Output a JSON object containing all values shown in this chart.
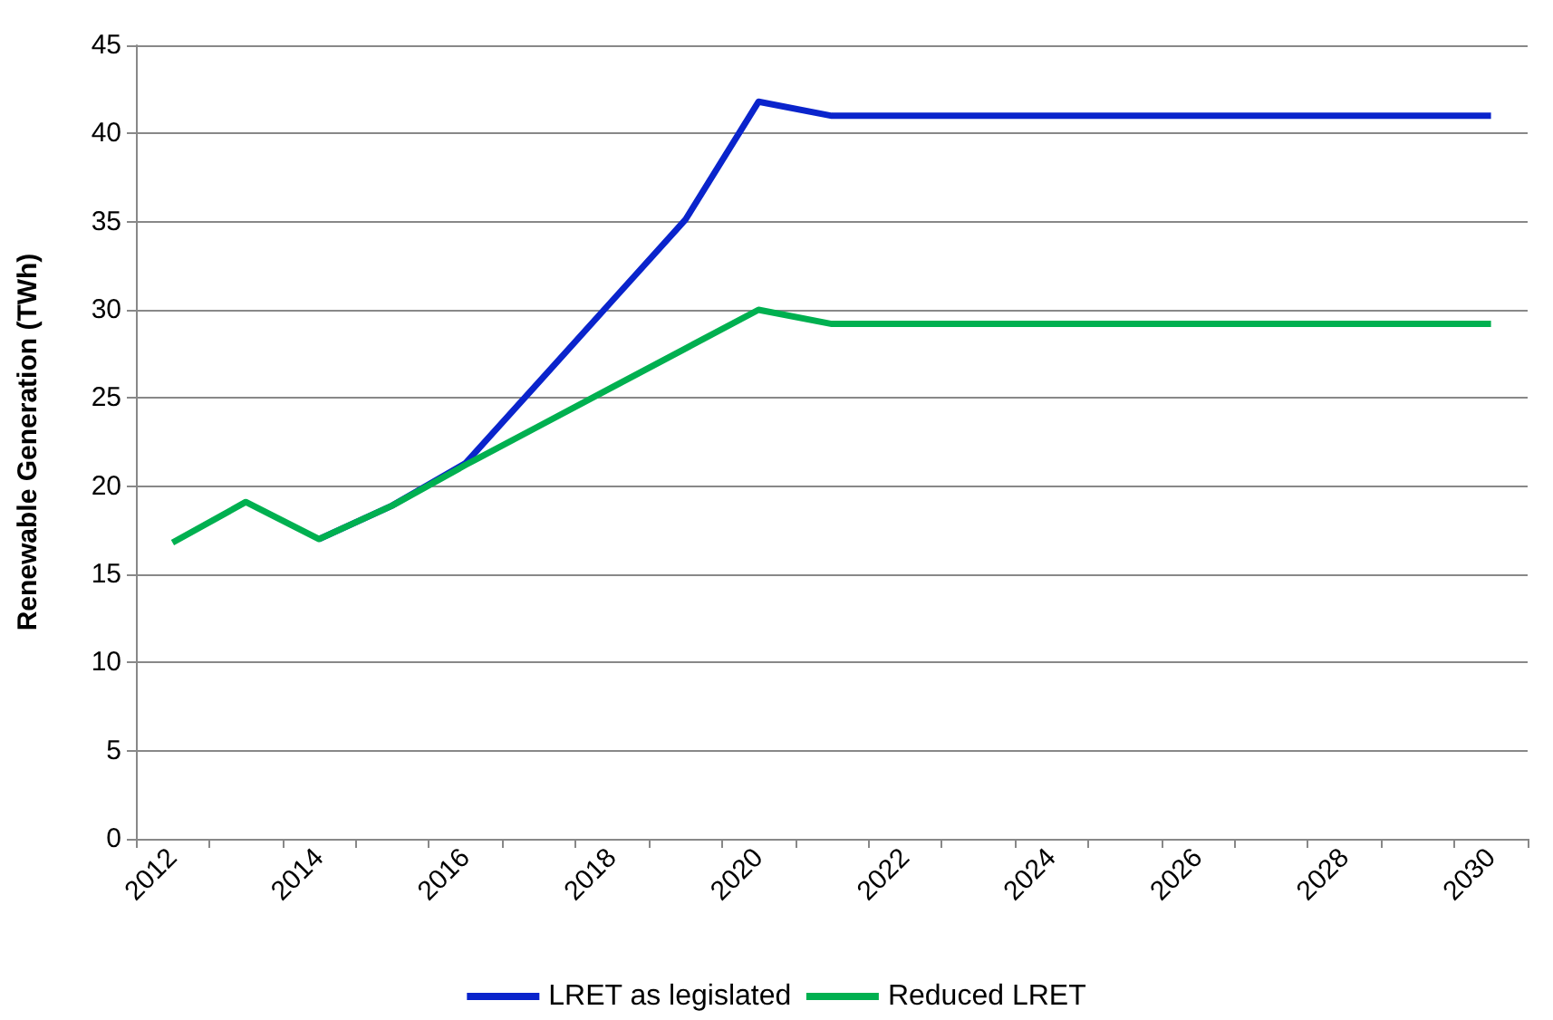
{
  "chart_data": {
    "type": "line",
    "ylabel": "Renewable Generation (TWh)",
    "categories": [
      "2012",
      null,
      "2014",
      null,
      "2016",
      null,
      "2018",
      null,
      "2020",
      null,
      "2022",
      null,
      "2024",
      null,
      "2026",
      null,
      "2028",
      null,
      "2030"
    ],
    "series": [
      {
        "name": "LRET as legislated",
        "color": "#0a24cc",
        "values": [
          null,
          null,
          17.0,
          18.9,
          21.3,
          25.9,
          30.5,
          35.1,
          41.8,
          41.0,
          41.0,
          41.0,
          41.0,
          41.0,
          41.0,
          41.0,
          41.0,
          41.0,
          41.0
        ]
      },
      {
        "name": "Reduced LRET",
        "color": "#00b050",
        "values": [
          16.8,
          19.1,
          17.0,
          18.9,
          21.2,
          23.4,
          25.6,
          27.8,
          30.0,
          29.2,
          29.2,
          29.2,
          29.2,
          29.2,
          29.2,
          29.2,
          29.2,
          29.2,
          29.2
        ]
      }
    ],
    "ylim": [
      0,
      45
    ],
    "yticks": [
      0,
      5,
      10,
      15,
      20,
      25,
      30,
      35,
      40,
      45
    ],
    "grid": "y",
    "legend": "bottom",
    "marker": "none",
    "line_style": "solid"
  }
}
